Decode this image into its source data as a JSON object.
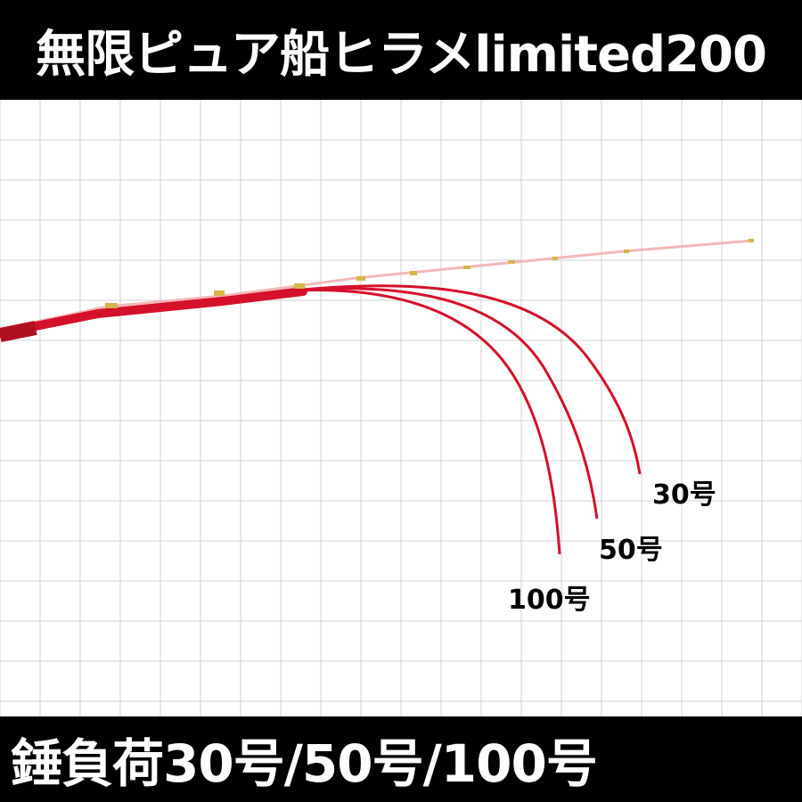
{
  "header": {
    "title": "無限ピュア船ヒラメlimited200"
  },
  "figure": {
    "curves": [
      {
        "label": "30号"
      },
      {
        "label": "50号"
      },
      {
        "label": "100号"
      }
    ]
  },
  "footer": {
    "caption": "錘負荷30号/50号/100号"
  },
  "colors": {
    "band": "#000000",
    "band_text": "#ffffff",
    "grid": "#d0d0d0",
    "rod": "#d4102a",
    "rod_tip": "#f2b8b8",
    "guide": "#d6b44a",
    "grip": "#b01020"
  }
}
